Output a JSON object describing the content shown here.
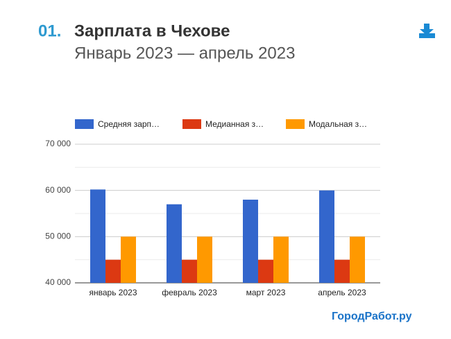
{
  "header": {
    "number": "01.",
    "title": "Зарплата в Чехове",
    "subtitle": "Январь 2023 — апрель 2023"
  },
  "brand": "ГородРабот.ру",
  "chart_data": {
    "type": "bar",
    "categories": [
      "январь 2023",
      "февраль 2023",
      "март 2023",
      "апрель 2023"
    ],
    "series": [
      {
        "name": "Средняя зарп…",
        "color": "#3366cc",
        "values": [
          60200,
          57000,
          58000,
          60000
        ]
      },
      {
        "name": "Медианная з…",
        "color": "#dc3912",
        "values": [
          45000,
          45000,
          45000,
          45000
        ]
      },
      {
        "name": "Модальная з…",
        "color": "#ff9900",
        "values": [
          50000,
          50000,
          50000,
          50000
        ]
      }
    ],
    "ylim": [
      40000,
      70000
    ],
    "yticks": [
      {
        "value": 40000,
        "label": "40 000"
      },
      {
        "value": 50000,
        "label": "50 000"
      },
      {
        "value": 60000,
        "label": "60 000"
      },
      {
        "value": 70000,
        "label": "70 000"
      }
    ],
    "minor_yticks": [
      45000,
      55000,
      65000
    ],
    "grid": true,
    "legend": "top"
  }
}
